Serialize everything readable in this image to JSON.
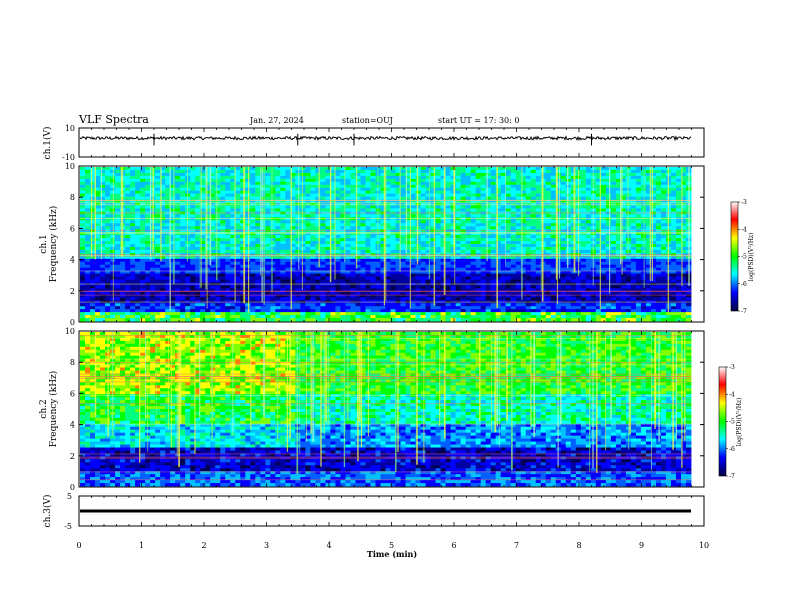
{
  "header": {
    "title": "VLF Spectra",
    "date": "Jan. 27, 2024",
    "station": "station=OUJ",
    "start": "start  UT  =   17: 30: 0"
  },
  "chart_data": [
    {
      "type": "line",
      "ylabel": "ch.1(V)",
      "ylim": [
        -10,
        10
      ],
      "yticks": [
        "10",
        "-10"
      ],
      "baseline": 3,
      "spike_times": [
        1.2,
        3.5,
        4.4,
        8.2
      ],
      "xlim": [
        0,
        10
      ]
    },
    {
      "type": "heatmap",
      "ylabel_line1": "ch.1",
      "ylabel_line2": "Frequency (kHz)",
      "ylim": [
        0,
        10
      ],
      "yticks": [
        "0",
        "2",
        "4",
        "6",
        "8",
        "10"
      ],
      "xlim": [
        0,
        10
      ],
      "colorbar": {
        "label": "log(PSD)(V²/Hz)",
        "ticks": [
          "-3",
          "-4",
          "-5",
          "-6",
          "-7"
        ],
        "colors": [
          "#ffffff",
          "#ff0000",
          "#ffff00",
          "#00ff00",
          "#00ffff",
          "#0000ff",
          "#000040"
        ]
      }
    },
    {
      "type": "heatmap",
      "ylabel_line1": "ch.2",
      "ylabel_line2": "Frequency (kHz)",
      "ylim": [
        0,
        10
      ],
      "yticks": [
        "0",
        "2",
        "4",
        "6",
        "8",
        "10"
      ],
      "xlim": [
        0,
        10
      ],
      "colorbar": {
        "label": "log(PSD)(V²/Hz)",
        "ticks": [
          "-3",
          "-4",
          "-5",
          "-6",
          "-7"
        ],
        "colors": [
          "#ffffff",
          "#ff0000",
          "#ffff00",
          "#00ff00",
          "#00ffff",
          "#0000ff",
          "#000040"
        ]
      }
    },
    {
      "type": "line",
      "ylabel": "ch.3(V)",
      "ylim": [
        -5,
        5
      ],
      "yticks": [
        "5",
        "-5"
      ],
      "baseline": 0,
      "xlim": [
        0,
        10
      ]
    }
  ],
  "xaxis": {
    "label": "Time  (min)",
    "ticks": [
      "0",
      "1",
      "2",
      "3",
      "4",
      "5",
      "6",
      "7",
      "8",
      "9",
      "10"
    ]
  }
}
